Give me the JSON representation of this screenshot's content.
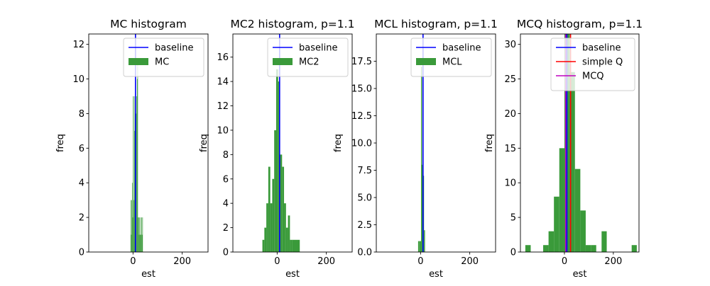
{
  "colors": {
    "hist": "#3a9a3a",
    "baseline": "#0000ff",
    "simpleQ": "#ff0000",
    "mcq": "#bf00bf"
  },
  "chart_data": [
    {
      "type": "bar",
      "title": "MC histogram",
      "xlabel": "est",
      "ylabel": "freq",
      "xlim": [
        -180,
        305
      ],
      "ylim": [
        0,
        12.6
      ],
      "xticks": [
        0,
        200
      ],
      "yticks": [
        0,
        2,
        4,
        6,
        8,
        10,
        12
      ],
      "grid": false,
      "legend_position": "upper right",
      "legend": [
        {
          "label": "baseline",
          "kind": "line",
          "color": "#0000ff"
        },
        {
          "label": "MC",
          "kind": "patch",
          "color": "#3a9a3a"
        }
      ],
      "baseline": 10,
      "bins": [
        {
          "x0": -10,
          "x1": -8,
          "v": 3
        },
        {
          "x0": -8,
          "x1": -6,
          "v": 1
        },
        {
          "x0": -6,
          "x1": -4,
          "v": 3
        },
        {
          "x0": -4,
          "x1": -2,
          "v": 4
        },
        {
          "x0": -2,
          "x1": 0,
          "v": 2
        },
        {
          "x0": 0,
          "x1": 2,
          "v": 9
        },
        {
          "x0": 2,
          "x1": 4,
          "v": 3
        },
        {
          "x0": 4,
          "x1": 6,
          "v": 9
        },
        {
          "x0": 6,
          "x1": 8,
          "v": 7
        },
        {
          "x0": 8,
          "x1": 10,
          "v": 9
        },
        {
          "x0": 10,
          "x1": 12,
          "v": 10
        },
        {
          "x0": 12,
          "x1": 14,
          "v": 8
        },
        {
          "x0": 14,
          "x1": 16,
          "v": 9
        },
        {
          "x0": 16,
          "x1": 18,
          "v": 10
        },
        {
          "x0": 18,
          "x1": 20,
          "v": 11
        },
        {
          "x0": 20,
          "x1": 22,
          "v": 2
        },
        {
          "x0": 22,
          "x1": 24,
          "v": 2
        },
        {
          "x0": 24,
          "x1": 26,
          "v": 1
        },
        {
          "x0": 26,
          "x1": 28,
          "v": 2
        },
        {
          "x0": 28,
          "x1": 30,
          "v": 1
        },
        {
          "x0": 30,
          "x1": 32,
          "v": 2
        },
        {
          "x0": 32,
          "x1": 34,
          "v": 1
        },
        {
          "x0": 34,
          "x1": 36,
          "v": 2
        },
        {
          "x0": 36,
          "x1": 38,
          "v": 1
        },
        {
          "x0": 38,
          "x1": 40,
          "v": 2
        }
      ]
    },
    {
      "type": "bar",
      "title": "MC2 histogram, p=1.1",
      "xlabel": "est",
      "ylabel": "freq",
      "xlim": [
        -180,
        305
      ],
      "ylim": [
        0,
        17.9
      ],
      "xticks": [
        0,
        200
      ],
      "yticks": [
        0,
        2,
        4,
        6,
        8,
        10,
        12,
        14,
        16
      ],
      "grid": false,
      "legend_position": "upper right",
      "legend": [
        {
          "label": "baseline",
          "kind": "line",
          "color": "#0000ff"
        },
        {
          "label": "MC2",
          "kind": "patch",
          "color": "#3a9a3a"
        }
      ],
      "baseline": 10,
      "bins": [
        {
          "x0": -60,
          "x1": -52,
          "v": 1
        },
        {
          "x0": -52,
          "x1": -44,
          "v": 2
        },
        {
          "x0": -44,
          "x1": -36,
          "v": 4
        },
        {
          "x0": -36,
          "x1": -28,
          "v": 7
        },
        {
          "x0": -28,
          "x1": -20,
          "v": 4
        },
        {
          "x0": -20,
          "x1": -12,
          "v": 6
        },
        {
          "x0": -12,
          "x1": -4,
          "v": 10
        },
        {
          "x0": -4,
          "x1": 4,
          "v": 15
        },
        {
          "x0": 4,
          "x1": 12,
          "v": 14
        },
        {
          "x0": 12,
          "x1": 20,
          "v": 8
        },
        {
          "x0": 20,
          "x1": 28,
          "v": 7
        },
        {
          "x0": 28,
          "x1": 36,
          "v": 4
        },
        {
          "x0": 36,
          "x1": 44,
          "v": 2
        },
        {
          "x0": 44,
          "x1": 52,
          "v": 3
        },
        {
          "x0": 52,
          "x1": 60,
          "v": 1
        },
        {
          "x0": 60,
          "x1": 92,
          "v": 1
        }
      ]
    },
    {
      "type": "bar",
      "title": "MCL histogram, p=1.1",
      "xlabel": "est",
      "ylabel": "freq",
      "xlim": [
        -180,
        305
      ],
      "ylim": [
        0,
        20
      ],
      "xticks": [
        0,
        200
      ],
      "yticks": [
        0.0,
        2.5,
        5.0,
        7.5,
        10.0,
        12.5,
        15.0,
        17.5
      ],
      "grid": false,
      "legend_position": "upper right",
      "legend": [
        {
          "label": "baseline",
          "kind": "line",
          "color": "#0000ff"
        },
        {
          "label": "MCL",
          "kind": "patch",
          "color": "#3a9a3a"
        }
      ],
      "baseline": 10,
      "bins": [
        {
          "x0": -10,
          "x1": -6,
          "v": 1
        },
        {
          "x0": -6,
          "x1": -2,
          "v": 1
        },
        {
          "x0": -2,
          "x1": 2,
          "v": 1
        },
        {
          "x0": 2,
          "x1": 6,
          "v": 17
        },
        {
          "x0": 6,
          "x1": 10,
          "v": 8
        },
        {
          "x0": 10,
          "x1": 14,
          "v": 7
        },
        {
          "x0": 14,
          "x1": 18,
          "v": 2
        }
      ]
    },
    {
      "type": "bar",
      "title": "MCQ histogram, p=1.1",
      "xlabel": "est",
      "ylabel": "freq",
      "xlim": [
        -180,
        305
      ],
      "ylim": [
        0,
        31.5
      ],
      "xticks": [
        0,
        200
      ],
      "yticks": [
        0,
        5,
        10,
        15,
        20,
        25,
        30
      ],
      "grid": false,
      "legend_position": "upper right",
      "legend": [
        {
          "label": "baseline",
          "kind": "line",
          "color": "#0000ff"
        },
        {
          "label": "simple Q",
          "kind": "line",
          "color": "#ff0000"
        },
        {
          "label": "MCQ",
          "kind": "line",
          "color": "#bf00bf"
        }
      ],
      "baseline": 10,
      "simple_q": 25,
      "mcq": 5,
      "bins": [
        {
          "x0": -160,
          "x1": -138,
          "v": 1
        },
        {
          "x0": -87,
          "x1": -65,
          "v": 1
        },
        {
          "x0": -65,
          "x1": -43,
          "v": 3
        },
        {
          "x0": -43,
          "x1": -21,
          "v": 8
        },
        {
          "x0": -21,
          "x1": 0,
          "v": 15
        },
        {
          "x0": 0,
          "x1": 22,
          "v": 32
        },
        {
          "x0": 22,
          "x1": 43,
          "v": 26
        },
        {
          "x0": 43,
          "x1": 65,
          "v": 12
        },
        {
          "x0": 65,
          "x1": 87,
          "v": 6
        },
        {
          "x0": 87,
          "x1": 108,
          "v": 1
        },
        {
          "x0": 108,
          "x1": 130,
          "v": 1
        },
        {
          "x0": 152,
          "x1": 173,
          "v": 3
        },
        {
          "x0": 275,
          "x1": 296,
          "v": 1
        }
      ]
    }
  ]
}
